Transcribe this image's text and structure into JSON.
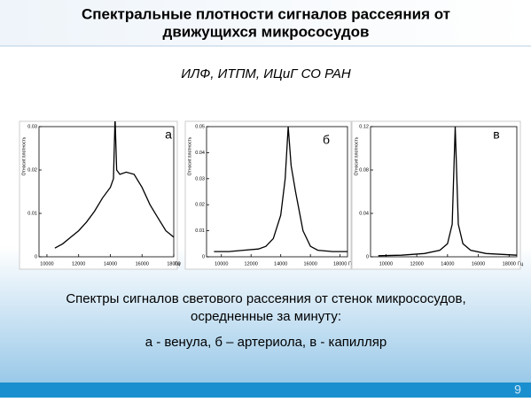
{
  "slide": {
    "title": [
      "Спектральные плотности сигналов рассеяния от",
      "движущихся микрососудов"
    ],
    "subtitle": "ИЛФ, ИТПМ, ИЦиГ СО РАН",
    "caption": [
      "Спектры сигналов светового рассеяния от стенок микрососудов,",
      "осредненные за минуту:",
      "а -  венула, б – артериола, в - капилляр"
    ],
    "page_number": "9"
  },
  "chart_data": [
    {
      "type": "line",
      "annotation": "а",
      "x_label": "Гц",
      "y_label": "Относит.плотность",
      "x": [
        10500,
        11000,
        11500,
        12000,
        12500,
        13000,
        13500,
        14000,
        14200,
        14300,
        14400,
        14600,
        15000,
        15500,
        16000,
        16500,
        17000,
        17500,
        18000
      ],
      "values": [
        0.002,
        0.003,
        0.0045,
        0.006,
        0.008,
        0.0105,
        0.0135,
        0.016,
        0.018,
        0.032,
        0.02,
        0.019,
        0.0195,
        0.019,
        0.016,
        0.012,
        0.009,
        0.006,
        0.0045
      ],
      "color": "#000000",
      "xlim": [
        9500,
        18000
      ],
      "ylim": [
        0,
        0.03
      ],
      "xticks": [
        10000,
        12000,
        14000,
        16000,
        18000
      ],
      "yticks": [
        0,
        0.01,
        0.02,
        0.03
      ]
    },
    {
      "type": "line",
      "annotation": "б",
      "x_label": "Гц",
      "y_label": "Относит.плотность",
      "x": [
        9500,
        10500,
        11500,
        12500,
        13000,
        13500,
        14000,
        14300,
        14500,
        14700,
        15000,
        15500,
        16000,
        16500,
        17500,
        18500
      ],
      "values": [
        0.002,
        0.002,
        0.0025,
        0.003,
        0.004,
        0.007,
        0.016,
        0.03,
        0.05,
        0.035,
        0.025,
        0.01,
        0.004,
        0.0025,
        0.002,
        0.002
      ],
      "color": "#000000",
      "xlim": [
        9000,
        18500
      ],
      "ylim": [
        0,
        0.05
      ],
      "xticks": [
        10000,
        12000,
        14000,
        16000,
        18000
      ],
      "yticks": [
        0,
        0.01,
        0.02,
        0.03,
        0.04,
        0.05
      ]
    },
    {
      "type": "line",
      "annotation": "в",
      "x_label": "Гц",
      "y_label": "Относит.плотность",
      "x": [
        9500,
        11000,
        12500,
        13500,
        14000,
        14300,
        14500,
        14700,
        15000,
        15500,
        16500,
        18500
      ],
      "values": [
        0.001,
        0.0015,
        0.003,
        0.006,
        0.012,
        0.03,
        0.12,
        0.03,
        0.012,
        0.006,
        0.003,
        0.0015
      ],
      "color": "#000000",
      "xlim": [
        9000,
        18500
      ],
      "ylim": [
        0,
        0.12
      ],
      "xticks": [
        10000,
        12000,
        14000,
        16000,
        18000
      ],
      "yticks": [
        0,
        0.04,
        0.08,
        0.12
      ]
    }
  ]
}
